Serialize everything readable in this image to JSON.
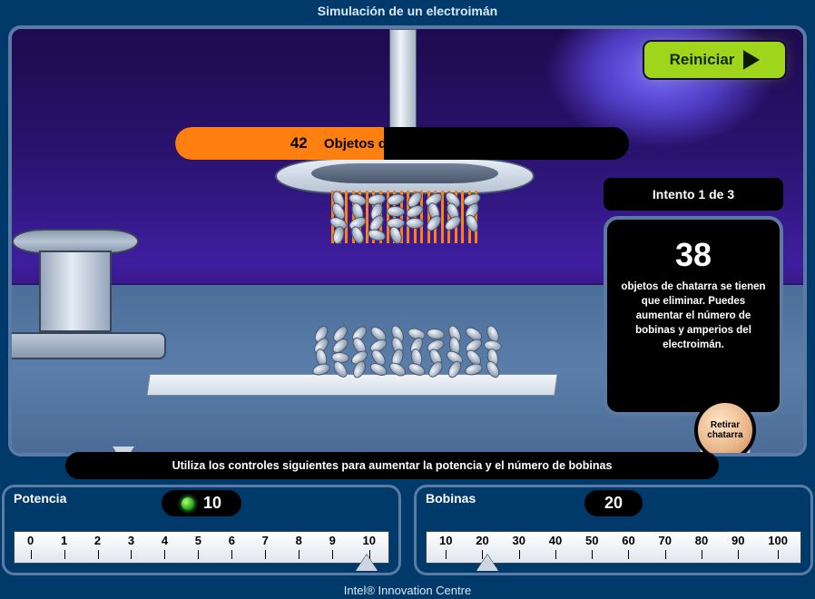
{
  "title": "Simulación de un electroimán",
  "restart_label": "Reiniciar",
  "counter": {
    "value": 42,
    "label": "Objetos de chatarra elevados",
    "fill_pct": 46
  },
  "attempt_text": "Intento 1 de 3",
  "info": {
    "target": 38,
    "text": "objetos de chatarra se tienen que eliminar. Puedes aumentar el número de bobinas y amperios del electroimán."
  },
  "retirar_label_1": "Retirar",
  "retirar_label_2": "chatarra",
  "instruction": "Utiliza los controles siguientes para aumentar la potencia y el número de bobinas",
  "controls": {
    "power": {
      "label": "Potencia",
      "value": 10,
      "ticks": [
        "0",
        "1",
        "2",
        "3",
        "4",
        "5",
        "6",
        "7",
        "8",
        "9",
        "10"
      ],
      "thumb_pct": 92
    },
    "coils": {
      "label": "Bobinas",
      "value": 20,
      "ticks": [
        "10",
        "20",
        "30",
        "40",
        "50",
        "60",
        "70",
        "80",
        "90",
        "100"
      ],
      "thumb_pct": 18
    }
  },
  "footer": "Intel® Innovation Centre",
  "colors": {
    "accent_orange": "#ff7f11",
    "accent_green": "#9fd51a",
    "frame_border": "#5b7ba5",
    "bg_deep": "#003a6a"
  }
}
